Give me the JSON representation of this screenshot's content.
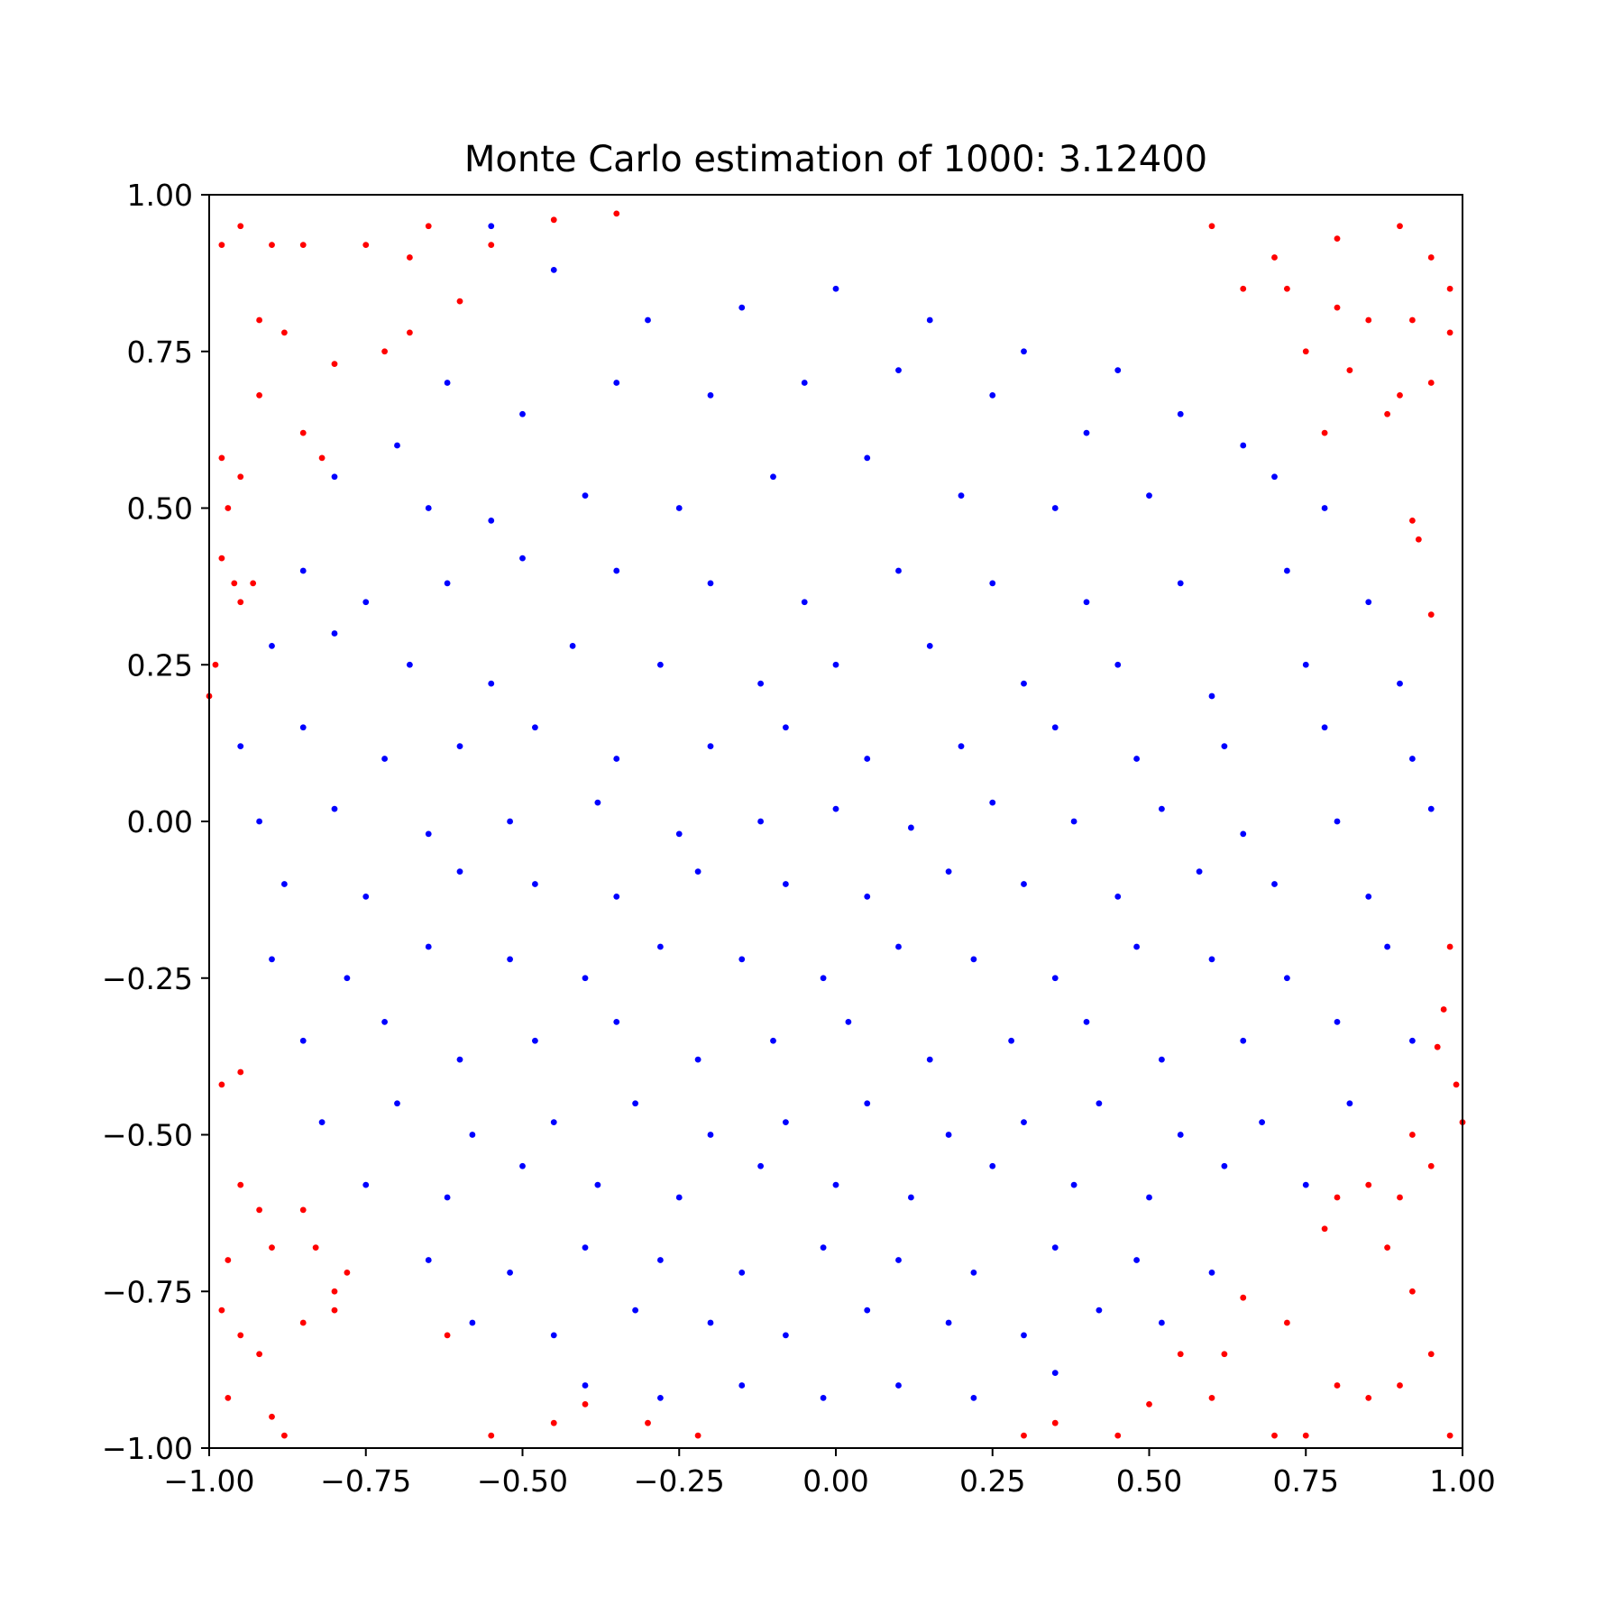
{
  "chart_data": {
    "type": "scatter",
    "title": "Monte Carlo estimation of 1000: 3.12400",
    "xlabel": "",
    "ylabel": "",
    "xlim": [
      -1.0,
      1.0
    ],
    "ylim": [
      -1.0,
      1.0
    ],
    "grid": false,
    "x_ticks": [
      "−1.00",
      "−0.75",
      "−0.50",
      "−0.25",
      "0.00",
      "0.25",
      "0.50",
      "0.75",
      "1.00"
    ],
    "y_ticks": [
      "1.00",
      "0.75",
      "0.50",
      "0.25",
      "0.00",
      "−0.25",
      "−0.50",
      "−0.75",
      "−1.00"
    ],
    "colors": {
      "inside": "#0000ff",
      "outside": "#ff0000"
    },
    "series": [
      {
        "color": "#0000ff",
        "points": [
          [
            -0.55,
            0.95
          ],
          [
            -0.45,
            0.88
          ],
          [
            -0.3,
            0.8
          ],
          [
            -0.15,
            0.82
          ],
          [
            0.0,
            0.85
          ],
          [
            0.15,
            0.8
          ],
          [
            0.3,
            0.75
          ],
          [
            0.45,
            0.72
          ],
          [
            -0.62,
            0.7
          ],
          [
            -0.5,
            0.65
          ],
          [
            -0.35,
            0.7
          ],
          [
            -0.2,
            0.68
          ],
          [
            -0.05,
            0.7
          ],
          [
            0.1,
            0.72
          ],
          [
            0.25,
            0.68
          ],
          [
            0.4,
            0.62
          ],
          [
            0.55,
            0.65
          ],
          [
            0.65,
            0.6
          ],
          [
            -0.7,
            0.6
          ],
          [
            -0.8,
            0.55
          ],
          [
            -0.65,
            0.5
          ],
          [
            -0.55,
            0.48
          ],
          [
            -0.4,
            0.52
          ],
          [
            -0.25,
            0.5
          ],
          [
            -0.1,
            0.55
          ],
          [
            0.05,
            0.58
          ],
          [
            0.2,
            0.52
          ],
          [
            0.35,
            0.5
          ],
          [
            0.5,
            0.52
          ],
          [
            0.7,
            0.55
          ],
          [
            0.78,
            0.5
          ],
          [
            -0.85,
            0.4
          ],
          [
            -0.75,
            0.35
          ],
          [
            -0.62,
            0.38
          ],
          [
            -0.5,
            0.42
          ],
          [
            -0.35,
            0.4
          ],
          [
            -0.2,
            0.38
          ],
          [
            -0.05,
            0.35
          ],
          [
            0.1,
            0.4
          ],
          [
            0.25,
            0.38
          ],
          [
            0.4,
            0.35
          ],
          [
            0.55,
            0.38
          ],
          [
            0.72,
            0.4
          ],
          [
            0.85,
            0.35
          ],
          [
            -0.9,
            0.28
          ],
          [
            -0.8,
            0.3
          ],
          [
            -0.68,
            0.25
          ],
          [
            -0.55,
            0.22
          ],
          [
            -0.42,
            0.28
          ],
          [
            -0.28,
            0.25
          ],
          [
            -0.12,
            0.22
          ],
          [
            0.0,
            0.25
          ],
          [
            0.15,
            0.28
          ],
          [
            0.3,
            0.22
          ],
          [
            0.45,
            0.25
          ],
          [
            0.6,
            0.2
          ],
          [
            0.75,
            0.25
          ],
          [
            0.9,
            0.22
          ],
          [
            -0.95,
            0.12
          ],
          [
            -0.85,
            0.15
          ],
          [
            -0.72,
            0.1
          ],
          [
            -0.6,
            0.12
          ],
          [
            -0.48,
            0.15
          ],
          [
            -0.35,
            0.1
          ],
          [
            -0.2,
            0.12
          ],
          [
            -0.08,
            0.15
          ],
          [
            0.05,
            0.1
          ],
          [
            0.2,
            0.12
          ],
          [
            0.35,
            0.15
          ],
          [
            0.48,
            0.1
          ],
          [
            0.62,
            0.12
          ],
          [
            0.78,
            0.15
          ],
          [
            0.92,
            0.1
          ],
          [
            -0.92,
            0.0
          ],
          [
            -0.8,
            0.02
          ],
          [
            -0.65,
            -0.02
          ],
          [
            -0.52,
            0.0
          ],
          [
            -0.38,
            0.03
          ],
          [
            -0.25,
            -0.02
          ],
          [
            -0.12,
            0.0
          ],
          [
            0.0,
            0.02
          ],
          [
            0.12,
            -0.01
          ],
          [
            0.25,
            0.03
          ],
          [
            0.38,
            0.0
          ],
          [
            0.52,
            0.02
          ],
          [
            0.65,
            -0.02
          ],
          [
            0.8,
            0.0
          ],
          [
            0.95,
            0.02
          ],
          [
            -0.88,
            -0.1
          ],
          [
            -0.75,
            -0.12
          ],
          [
            -0.6,
            -0.08
          ],
          [
            -0.48,
            -0.1
          ],
          [
            -0.35,
            -0.12
          ],
          [
            -0.22,
            -0.08
          ],
          [
            -0.08,
            -0.1
          ],
          [
            0.05,
            -0.12
          ],
          [
            0.18,
            -0.08
          ],
          [
            0.3,
            -0.1
          ],
          [
            0.45,
            -0.12
          ],
          [
            0.58,
            -0.08
          ],
          [
            0.7,
            -0.1
          ],
          [
            0.85,
            -0.12
          ],
          [
            -0.9,
            -0.22
          ],
          [
            -0.78,
            -0.25
          ],
          [
            -0.65,
            -0.2
          ],
          [
            -0.52,
            -0.22
          ],
          [
            -0.4,
            -0.25
          ],
          [
            -0.28,
            -0.2
          ],
          [
            -0.15,
            -0.22
          ],
          [
            -0.02,
            -0.25
          ],
          [
            0.1,
            -0.2
          ],
          [
            0.22,
            -0.22
          ],
          [
            0.35,
            -0.25
          ],
          [
            0.48,
            -0.2
          ],
          [
            0.6,
            -0.22
          ],
          [
            0.72,
            -0.25
          ],
          [
            0.88,
            -0.2
          ],
          [
            -0.85,
            -0.35
          ],
          [
            -0.72,
            -0.32
          ],
          [
            -0.6,
            -0.38
          ],
          [
            -0.48,
            -0.35
          ],
          [
            -0.35,
            -0.32
          ],
          [
            -0.22,
            -0.38
          ],
          [
            -0.1,
            -0.35
          ],
          [
            0.02,
            -0.32
          ],
          [
            0.15,
            -0.38
          ],
          [
            0.28,
            -0.35
          ],
          [
            0.4,
            -0.32
          ],
          [
            0.52,
            -0.38
          ],
          [
            0.65,
            -0.35
          ],
          [
            0.8,
            -0.32
          ],
          [
            0.92,
            -0.35
          ],
          [
            -0.82,
            -0.48
          ],
          [
            -0.7,
            -0.45
          ],
          [
            -0.58,
            -0.5
          ],
          [
            -0.45,
            -0.48
          ],
          [
            -0.32,
            -0.45
          ],
          [
            -0.2,
            -0.5
          ],
          [
            -0.08,
            -0.48
          ],
          [
            0.05,
            -0.45
          ],
          [
            0.18,
            -0.5
          ],
          [
            0.3,
            -0.48
          ],
          [
            0.42,
            -0.45
          ],
          [
            0.55,
            -0.5
          ],
          [
            0.68,
            -0.48
          ],
          [
            0.82,
            -0.45
          ],
          [
            -0.75,
            -0.58
          ],
          [
            -0.62,
            -0.6
          ],
          [
            -0.5,
            -0.55
          ],
          [
            -0.38,
            -0.58
          ],
          [
            -0.25,
            -0.6
          ],
          [
            -0.12,
            -0.55
          ],
          [
            0.0,
            -0.58
          ],
          [
            0.12,
            -0.6
          ],
          [
            0.25,
            -0.55
          ],
          [
            0.38,
            -0.58
          ],
          [
            0.5,
            -0.6
          ],
          [
            0.62,
            -0.55
          ],
          [
            0.75,
            -0.58
          ],
          [
            -0.65,
            -0.7
          ],
          [
            -0.52,
            -0.72
          ],
          [
            -0.4,
            -0.68
          ],
          [
            -0.28,
            -0.7
          ],
          [
            -0.15,
            -0.72
          ],
          [
            -0.02,
            -0.68
          ],
          [
            0.1,
            -0.7
          ],
          [
            0.22,
            -0.72
          ],
          [
            0.35,
            -0.68
          ],
          [
            0.48,
            -0.7
          ],
          [
            0.6,
            -0.72
          ],
          [
            -0.58,
            -0.8
          ],
          [
            -0.45,
            -0.82
          ],
          [
            -0.32,
            -0.78
          ],
          [
            -0.2,
            -0.8
          ],
          [
            -0.08,
            -0.82
          ],
          [
            0.05,
            -0.78
          ],
          [
            0.18,
            -0.8
          ],
          [
            0.3,
            -0.82
          ],
          [
            0.42,
            -0.78
          ],
          [
            0.52,
            -0.8
          ],
          [
            -0.4,
            -0.9
          ],
          [
            -0.28,
            -0.92
          ],
          [
            -0.15,
            -0.9
          ],
          [
            -0.02,
            -0.92
          ],
          [
            0.1,
            -0.9
          ],
          [
            0.22,
            -0.92
          ],
          [
            0.35,
            -0.88
          ]
        ]
      },
      {
        "color": "#ff0000",
        "points": [
          [
            -0.98,
            0.92
          ],
          [
            -0.95,
            0.95
          ],
          [
            -0.9,
            0.92
          ],
          [
            -0.85,
            0.92
          ],
          [
            -0.75,
            0.92
          ],
          [
            -0.68,
            0.9
          ],
          [
            -0.55,
            0.92
          ],
          [
            -0.45,
            0.96
          ],
          [
            -0.35,
            0.97
          ],
          [
            -0.92,
            0.8
          ],
          [
            -0.88,
            0.78
          ],
          [
            -0.8,
            0.73
          ],
          [
            -0.72,
            0.75
          ],
          [
            -0.68,
            0.78
          ],
          [
            -0.6,
            0.83
          ],
          [
            -0.65,
            0.95
          ],
          [
            -0.92,
            0.68
          ],
          [
            -0.85,
            0.62
          ],
          [
            -0.82,
            0.58
          ],
          [
            -0.98,
            0.58
          ],
          [
            -0.95,
            0.55
          ],
          [
            -0.97,
            0.5
          ],
          [
            -0.98,
            0.42
          ],
          [
            -0.96,
            0.38
          ],
          [
            -0.95,
            0.35
          ],
          [
            -0.99,
            0.25
          ],
          [
            -1.0,
            0.2
          ],
          [
            -0.93,
            0.38
          ],
          [
            0.6,
            0.95
          ],
          [
            0.7,
            0.9
          ],
          [
            0.8,
            0.93
          ],
          [
            0.9,
            0.95
          ],
          [
            0.95,
            0.9
          ],
          [
            0.98,
            0.85
          ],
          [
            0.65,
            0.85
          ],
          [
            0.72,
            0.85
          ],
          [
            0.8,
            0.82
          ],
          [
            0.85,
            0.8
          ],
          [
            0.92,
            0.8
          ],
          [
            0.98,
            0.78
          ],
          [
            0.75,
            0.75
          ],
          [
            0.82,
            0.72
          ],
          [
            0.9,
            0.68
          ],
          [
            0.95,
            0.7
          ],
          [
            0.88,
            0.65
          ],
          [
            0.78,
            0.62
          ],
          [
            0.92,
            0.48
          ],
          [
            0.93,
            0.45
          ],
          [
            0.95,
            0.33
          ],
          [
            -0.98,
            -0.42
          ],
          [
            -0.95,
            -0.4
          ],
          [
            -0.95,
            -0.58
          ],
          [
            -0.92,
            -0.62
          ],
          [
            -0.97,
            -0.7
          ],
          [
            -0.9,
            -0.68
          ],
          [
            -0.85,
            -0.62
          ],
          [
            -0.83,
            -0.68
          ],
          [
            -0.8,
            -0.75
          ],
          [
            -0.78,
            -0.72
          ],
          [
            -0.85,
            -0.8
          ],
          [
            -0.8,
            -0.78
          ],
          [
            -0.98,
            -0.78
          ],
          [
            -0.95,
            -0.82
          ],
          [
            -0.92,
            -0.85
          ],
          [
            -0.97,
            -0.92
          ],
          [
            -0.9,
            -0.95
          ],
          [
            -0.88,
            -0.98
          ],
          [
            -0.62,
            -0.82
          ],
          [
            -0.55,
            -0.98
          ],
          [
            -0.4,
            -0.93
          ],
          [
            -0.3,
            -0.96
          ],
          [
            -0.22,
            -0.98
          ],
          [
            -0.45,
            -0.96
          ],
          [
            0.98,
            -0.2
          ],
          [
            0.97,
            -0.3
          ],
          [
            0.96,
            -0.36
          ],
          [
            0.99,
            -0.42
          ],
          [
            1.0,
            -0.48
          ],
          [
            0.92,
            -0.5
          ],
          [
            0.95,
            -0.55
          ],
          [
            0.9,
            -0.6
          ],
          [
            0.85,
            -0.58
          ],
          [
            0.78,
            -0.65
          ],
          [
            0.8,
            -0.6
          ],
          [
            0.88,
            -0.68
          ],
          [
            0.92,
            -0.75
          ],
          [
            0.95,
            -0.85
          ],
          [
            0.9,
            -0.9
          ],
          [
            0.85,
            -0.92
          ],
          [
            0.8,
            -0.9
          ],
          [
            0.72,
            -0.8
          ],
          [
            0.65,
            -0.76
          ],
          [
            0.62,
            -0.85
          ],
          [
            0.6,
            -0.92
          ],
          [
            0.55,
            -0.85
          ],
          [
            0.5,
            -0.93
          ],
          [
            0.45,
            -0.98
          ],
          [
            0.7,
            -0.98
          ],
          [
            0.75,
            -0.98
          ],
          [
            0.98,
            -0.98
          ],
          [
            0.3,
            -0.98
          ],
          [
            0.35,
            -0.96
          ]
        ]
      }
    ]
  }
}
